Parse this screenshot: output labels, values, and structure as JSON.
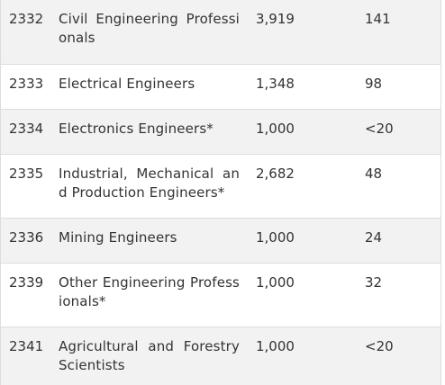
{
  "rows": [
    {
      "code": "2332",
      "occupation": "Civil Engineering Professionals",
      "col3": "3,919",
      "col4": "141"
    },
    {
      "code": "2333",
      "occupation": "Electrical Engineers",
      "col3": "1,348",
      "col4": "98"
    },
    {
      "code": "2334",
      "occupation": "Electronics Engineers*",
      "col3": "1,000",
      "col4": "<20"
    },
    {
      "code": "2335",
      "occupation": "Industrial, Mechanical and Production Engineers*",
      "col3": "2,682",
      "col4": "48"
    },
    {
      "code": "2336",
      "occupation": "Mining Engineers",
      "col3": "1,000",
      "col4": "24"
    },
    {
      "code": "2339",
      "occupation": "Other Engineering Professionals*",
      "col3": "1,000",
      "col4": "32"
    },
    {
      "code": "2341",
      "occupation": "Agricultural and Forestry Scientists",
      "col3": "1,000",
      "col4": "<20"
    }
  ]
}
